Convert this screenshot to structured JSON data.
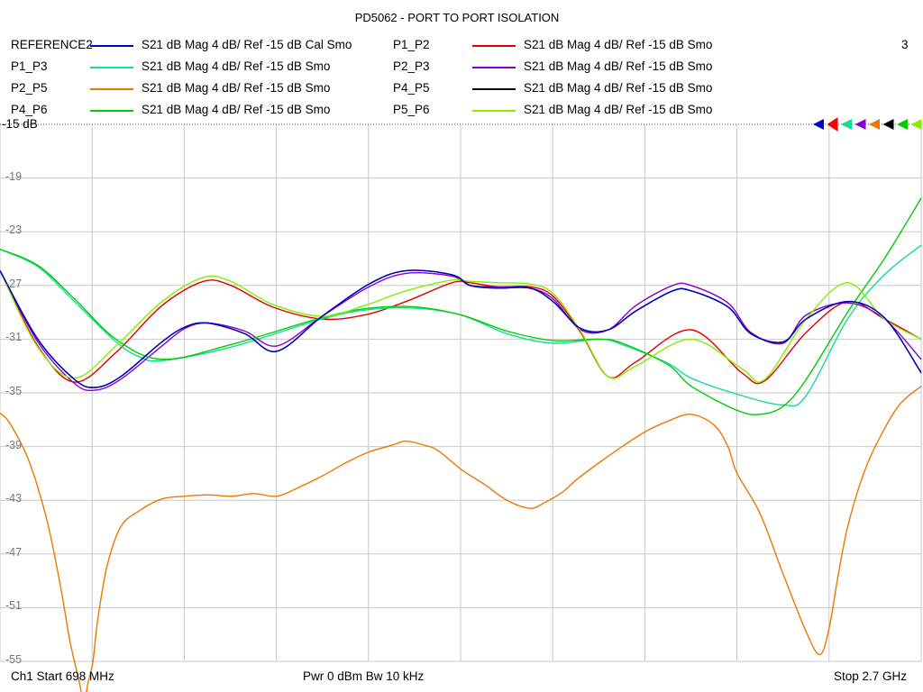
{
  "chart_data": {
    "type": "line",
    "title": "PD5062 - PORT TO PORT ISOLATION",
    "channel_number": "3",
    "ref_label": "-15 dB",
    "x_start_mhz": 698,
    "x_stop_mhz": 2700,
    "ylim": [
      -55,
      -15
    ],
    "yticks": [
      "-19",
      "-23",
      "-27",
      "-31",
      "-35",
      "-39",
      "-43",
      "-47",
      "-51",
      "-55"
    ],
    "grid": true,
    "footer": {
      "start": "Ch1  Start  698 MHz",
      "center": "Pwr  0 dBm  Bw  10 kHz",
      "stop": "Stop  2.7 GHz"
    },
    "legend": [
      {
        "name": "REFERENCE2",
        "desc": "S21  dB Mag  4 dB/ Ref -15 dB  Cal Smo",
        "color": "#0000cc"
      },
      {
        "name": "P1_P2",
        "desc": "S21  dB Mag  4 dB/ Ref -15 dB  Smo",
        "color": "#dd0000"
      },
      {
        "name": "P1_P3",
        "desc": "S21  dB Mag  4 dB/ Ref -15 dB  Smo",
        "color": "#11dd99"
      },
      {
        "name": "P2_P3",
        "desc": "S21  dB Mag  4 dB/ Ref -15 dB  Smo",
        "color": "#8800cc"
      },
      {
        "name": "P2_P5",
        "desc": "S21  dB Mag  4 dB/ Ref -15 dB  Smo",
        "color": "#ee7700"
      },
      {
        "name": "P4_P5",
        "desc": "S21  dB Mag  4 dB/ Ref -15 dB  Smo",
        "color": "#000000"
      },
      {
        "name": "P4_P6",
        "desc": "S21  dB Mag  4 dB/ Ref -15 dB  Smo",
        "color": "#00cc00"
      },
      {
        "name": "P5_P6",
        "desc": "S21  dB Mag  4 dB/ Ref -15 dB  Smo",
        "color": "#88ee00"
      }
    ],
    "marker_colors": [
      "#0000cc",
      "#ff0000",
      "#11dd99",
      "#8800cc",
      "#ee7700",
      "#000000",
      "#00cc00",
      "#88ee00"
    ],
    "series": [
      {
        "name": "P1_P2",
        "color": "#dd0000",
        "x": [
          698,
          780,
          860,
          950,
          1050,
          1140,
          1200,
          1290,
          1398,
          1490,
          1580,
          1680,
          1720,
          1780,
          1850,
          1900,
          1960,
          2020,
          2080,
          2200,
          2310,
          2360,
          2450,
          2540,
          2620,
          2700
        ],
        "y": [
          -25.9,
          -31.5,
          -34.2,
          -32.0,
          -28.5,
          -26.7,
          -27.0,
          -28.6,
          -29.5,
          -29.2,
          -28.2,
          -26.8,
          -26.8,
          -27.1,
          -27.1,
          -27.8,
          -30.5,
          -33.8,
          -32.7,
          -30.3,
          -33.5,
          -34.1,
          -30.5,
          -28.2,
          -29.5,
          -31.0
        ]
      },
      {
        "name": "P1_P3",
        "color": "#11dd99",
        "x": [
          698,
          780,
          860,
          950,
          1000,
          1050,
          1200,
          1398,
          1500,
          1600,
          1700,
          1800,
          1900,
          2000,
          2050,
          2150,
          2200,
          2300,
          2400,
          2450,
          2540,
          2620,
          2700
        ],
        "y": [
          -24.3,
          -25.6,
          -28.2,
          -31.2,
          -32.3,
          -32.6,
          -31.6,
          -29.5,
          -28.8,
          -28.7,
          -29.2,
          -30.6,
          -31.3,
          -31.0,
          -31.4,
          -32.8,
          -33.9,
          -35.1,
          -35.9,
          -35.2,
          -29.5,
          -26.2,
          -24.0
        ]
      },
      {
        "name": "P2_P3",
        "color": "#8800cc",
        "x": [
          698,
          780,
          860,
          905,
          960,
          1050,
          1100,
          1150,
          1230,
          1300,
          1398,
          1500,
          1580,
          1680,
          1720,
          1780,
          1850,
          1900,
          1960,
          2020,
          2080,
          2160,
          2200,
          2280,
          2330,
          2400,
          2450,
          2540,
          2620,
          2700
        ],
        "y": [
          -25.9,
          -31.2,
          -34.3,
          -34.8,
          -34.0,
          -31.5,
          -30.2,
          -29.8,
          -30.4,
          -31.5,
          -29.3,
          -27.1,
          -26.1,
          -26.3,
          -27.0,
          -27.1,
          -27.2,
          -28.0,
          -30.3,
          -30.3,
          -28.5,
          -27.0,
          -27.0,
          -28.3,
          -30.5,
          -31.3,
          -29.2,
          -28.3,
          -29.5,
          -32.5
        ]
      },
      {
        "name": "P2_P5",
        "color": "#ee7700",
        "x": [
          698,
          720,
          760,
          800,
          830,
          850,
          870,
          880,
          890,
          900,
          910,
          930,
          960,
          1000,
          1050,
          1100,
          1150,
          1200,
          1250,
          1300,
          1350,
          1398,
          1450,
          1500,
          1550,
          1580,
          1620,
          1650,
          1700,
          1750,
          1800,
          1850,
          1880,
          1920,
          1950,
          2000,
          2050,
          2100,
          2150,
          2200,
          2250,
          2280,
          2300,
          2350,
          2400,
          2450,
          2480,
          2500,
          2520,
          2540,
          2570,
          2600,
          2650,
          2700
        ],
        "y": [
          -36.5,
          -37.3,
          -40.0,
          -44.5,
          -49.5,
          -53.5,
          -56.5,
          -58.0,
          -56.5,
          -55.0,
          -52.0,
          -48.0,
          -45.0,
          -43.8,
          -42.9,
          -42.7,
          -42.6,
          -42.7,
          -42.5,
          -42.7,
          -42.0,
          -41.2,
          -40.2,
          -39.4,
          -38.9,
          -38.6,
          -38.9,
          -39.3,
          -40.7,
          -41.8,
          -43.0,
          -43.6,
          -43.2,
          -42.4,
          -41.5,
          -40.2,
          -39.0,
          -37.9,
          -37.1,
          -36.6,
          -37.4,
          -39.0,
          -41.0,
          -44.0,
          -48.5,
          -52.8,
          -54.5,
          -52.5,
          -48.5,
          -45.0,
          -41.5,
          -39.0,
          -36.0,
          -34.5
        ]
      },
      {
        "name": "P4_P5",
        "color": "#000000",
        "x": [
          698,
          780,
          860,
          905,
          960,
          1050,
          1100,
          1150,
          1230,
          1300,
          1398,
          1500,
          1580,
          1680,
          1720,
          1780,
          1850,
          1900,
          1960,
          2020,
          2080,
          2160,
          2200,
          2280,
          2330,
          2400,
          2450,
          2540,
          2620,
          2700
        ],
        "y": [
          -25.9,
          -31.0,
          -34.0,
          -34.6,
          -33.8,
          -31.2,
          -30.1,
          -29.8,
          -30.6,
          -31.9,
          -29.3,
          -26.9,
          -25.9,
          -26.2,
          -27.0,
          -27.2,
          -27.2,
          -28.2,
          -30.2,
          -30.3,
          -28.9,
          -27.4,
          -27.4,
          -28.6,
          -30.6,
          -31.2,
          -29.5,
          -28.2,
          -29.4,
          -33.5
        ]
      },
      {
        "name": "P4_P6",
        "color": "#00cc00",
        "x": [
          698,
          780,
          860,
          950,
          1050,
          1200,
          1398,
          1500,
          1600,
          1700,
          1800,
          1900,
          2000,
          2050,
          2150,
          2200,
          2300,
          2350,
          2400,
          2450,
          2540,
          2620,
          2700
        ],
        "y": [
          -24.3,
          -25.5,
          -28.0,
          -31.0,
          -32.5,
          -31.4,
          -29.4,
          -28.7,
          -28.6,
          -29.2,
          -30.4,
          -31.1,
          -31.0,
          -31.3,
          -32.9,
          -34.5,
          -36.3,
          -36.6,
          -36.0,
          -34.0,
          -29.0,
          -25.0,
          -20.5
        ]
      },
      {
        "name": "P5_P6",
        "color": "#88ee00",
        "x": [
          698,
          780,
          860,
          950,
          1050,
          1140,
          1200,
          1290,
          1398,
          1490,
          1580,
          1680,
          1720,
          1780,
          1850,
          1900,
          1960,
          2020,
          2080,
          2200,
          2310,
          2360,
          2450,
          2540,
          2620,
          2700
        ],
        "y": [
          -25.9,
          -31.6,
          -33.9,
          -31.5,
          -28.2,
          -26.4,
          -26.7,
          -28.4,
          -29.3,
          -28.5,
          -27.4,
          -26.6,
          -26.7,
          -26.8,
          -26.9,
          -27.6,
          -30.4,
          -33.8,
          -33.0,
          -31.0,
          -33.2,
          -34.0,
          -29.5,
          -26.8,
          -29.5,
          -31.0
        ]
      },
      {
        "name": "REFERENCE2",
        "color": "#0000cc",
        "x": [
          698,
          780,
          860,
          905,
          960,
          1050,
          1100,
          1150,
          1230,
          1300,
          1398,
          1500,
          1580,
          1680,
          1720,
          1780,
          1850,
          1900,
          1960,
          2020,
          2080,
          2160,
          2200,
          2280,
          2330,
          2400,
          2450,
          2540,
          2620,
          2700
        ],
        "y": [
          -25.9,
          -31.0,
          -34.0,
          -34.6,
          -33.8,
          -31.2,
          -30.1,
          -29.8,
          -30.6,
          -31.9,
          -29.3,
          -26.9,
          -25.9,
          -26.2,
          -27.0,
          -27.2,
          -27.2,
          -28.2,
          -30.2,
          -30.3,
          -28.9,
          -27.4,
          -27.4,
          -28.6,
          -30.6,
          -31.2,
          -29.5,
          -28.2,
          -29.4,
          -33.5
        ]
      }
    ]
  }
}
